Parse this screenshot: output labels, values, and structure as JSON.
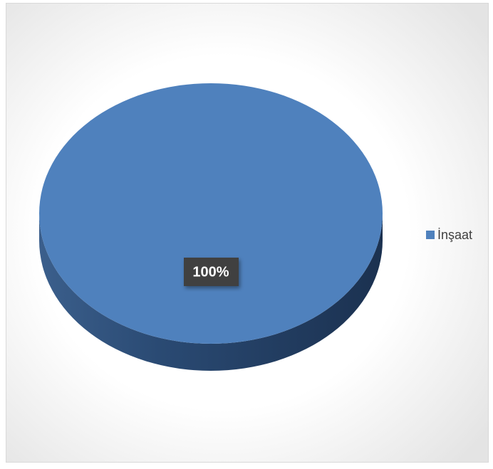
{
  "chart_data": {
    "type": "pie",
    "categories": [
      "İnşaat"
    ],
    "values": [
      100
    ],
    "value_labels": [
      "100%"
    ],
    "colors": [
      "#4f81bd"
    ],
    "legend": "right"
  }
}
